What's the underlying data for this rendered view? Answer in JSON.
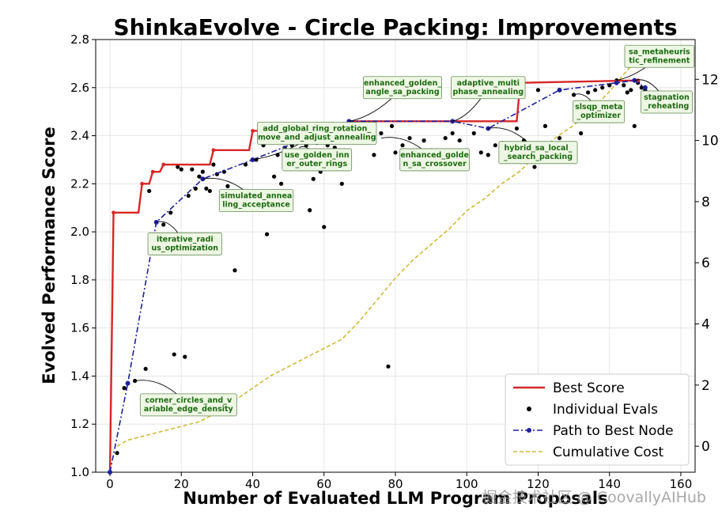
{
  "chart_data": {
    "type": "line",
    "title": "ShinkaEvolve - Circle Packing: Improvements",
    "xlabel": "Number of Evaluated LLM Program Proposals",
    "ylabel": "Evolved Performance Score",
    "xlim": [
      -4,
      164
    ],
    "ylim": [
      1.0,
      2.8
    ],
    "y2lim": [
      -0.85,
      13.3
    ],
    "x_ticks": [
      0,
      20,
      40,
      60,
      80,
      100,
      120,
      140,
      160
    ],
    "y_ticks": [
      1.0,
      1.2,
      1.4,
      1.6,
      1.8,
      2.0,
      2.2,
      2.4,
      2.6,
      2.8
    ],
    "y2_ticks": [
      0,
      2,
      4,
      6,
      8,
      10,
      12
    ],
    "grid": true,
    "legend_position": "lower-right",
    "legend": [
      "Best Score",
      "Individual Evals",
      "Path to Best Node",
      "Cumulative Cost"
    ],
    "colors": {
      "best": "#d62728",
      "evals": "#000000",
      "path": "#1f1f9f",
      "cost": "#cdbb3a",
      "annotation_bg": "#eef7e4",
      "annotation_text": "#1d6b12"
    },
    "series": [
      {
        "name": "Best Score",
        "style": "step",
        "x": [
          0,
          1,
          8,
          9,
          11,
          12,
          14,
          15,
          19,
          20,
          28,
          29,
          39,
          40,
          66,
          67,
          114,
          115,
          148
        ],
        "y": [
          1.0,
          2.08,
          2.08,
          2.2,
          2.2,
          2.25,
          2.25,
          2.28,
          2.28,
          2.28,
          2.28,
          2.34,
          2.34,
          2.42,
          2.42,
          2.46,
          2.46,
          2.62,
          2.63
        ]
      },
      {
        "name": "Individual Evals",
        "style": "scatter",
        "points": [
          [
            2,
            1.08
          ],
          [
            4,
            1.35
          ],
          [
            7,
            1.38
          ],
          [
            10,
            1.43
          ],
          [
            11,
            2.17
          ],
          [
            13,
            2.04
          ],
          [
            15,
            2.03
          ],
          [
            17,
            2.08
          ],
          [
            18,
            1.49
          ],
          [
            19,
            2.27
          ],
          [
            20,
            2.26
          ],
          [
            21,
            1.48
          ],
          [
            22,
            2.15
          ],
          [
            23,
            2.26
          ],
          [
            24,
            2.18
          ],
          [
            25,
            2.23
          ],
          [
            26,
            2.25
          ],
          [
            27,
            2.18
          ],
          [
            28,
            2.17
          ],
          [
            29,
            2.28
          ],
          [
            30,
            2.24
          ],
          [
            32,
            2.25
          ],
          [
            33,
            2.19
          ],
          [
            34,
            2.15
          ],
          [
            35,
            1.84
          ],
          [
            38,
            2.28
          ],
          [
            40,
            2.3
          ],
          [
            41,
            2.3
          ],
          [
            43,
            2.36
          ],
          [
            44,
            1.99
          ],
          [
            45,
            2.38
          ],
          [
            46,
            2.23
          ],
          [
            47,
            2.32
          ],
          [
            48,
            2.2
          ],
          [
            49,
            2.35
          ],
          [
            50,
            2.29
          ],
          [
            51,
            2.36
          ],
          [
            52,
            2.39
          ],
          [
            53,
            2.33
          ],
          [
            54,
            2.3
          ],
          [
            55,
            2.36
          ],
          [
            56,
            2.09
          ],
          [
            57,
            2.22
          ],
          [
            58,
            2.37
          ],
          [
            59,
            2.25
          ],
          [
            60,
            2.02
          ],
          [
            61,
            2.36
          ],
          [
            62,
            2.39
          ],
          [
            63,
            2.35
          ],
          [
            64,
            2.38
          ],
          [
            65,
            2.2
          ],
          [
            66,
            2.44
          ],
          [
            70,
            2.39
          ],
          [
            72,
            2.41
          ],
          [
            74,
            2.32
          ],
          [
            76,
            2.41
          ],
          [
            78,
            1.44
          ],
          [
            79,
            2.44
          ],
          [
            80,
            2.33
          ],
          [
            82,
            2.36
          ],
          [
            84,
            2.39
          ],
          [
            86,
            2.34
          ],
          [
            88,
            2.38
          ],
          [
            90,
            2.34
          ],
          [
            92,
            2.32
          ],
          [
            94,
            2.39
          ],
          [
            96,
            2.41
          ],
          [
            98,
            2.38
          ],
          [
            100,
            2.33
          ],
          [
            102,
            2.41
          ],
          [
            104,
            2.33
          ],
          [
            106,
            2.32
          ],
          [
            108,
            2.36
          ],
          [
            110,
            2.37
          ],
          [
            112,
            2.3
          ],
          [
            114,
            2.43
          ],
          [
            116,
            2.38
          ],
          [
            118,
            2.33
          ],
          [
            119,
            2.27
          ],
          [
            120,
            2.59
          ],
          [
            122,
            2.44
          ],
          [
            124,
            2.32
          ],
          [
            126,
            2.39
          ],
          [
            130,
            2.57
          ],
          [
            132,
            2.41
          ],
          [
            134,
            2.58
          ],
          [
            136,
            2.59
          ],
          [
            138,
            2.6
          ],
          [
            140,
            2.61
          ],
          [
            142,
            2.63
          ],
          [
            144,
            2.61
          ],
          [
            145,
            2.58
          ],
          [
            146,
            2.59
          ],
          [
            147,
            2.44
          ],
          [
            148,
            2.62
          ],
          [
            149,
            2.6
          ],
          [
            150,
            2.59
          ]
        ]
      },
      {
        "name": "Path to Best Node",
        "style": "dashdot",
        "x": [
          0,
          5,
          13,
          26,
          40,
          67,
          96,
          106,
          126,
          142,
          147,
          150
        ],
        "y": [
          1.0,
          1.37,
          2.04,
          2.22,
          2.3,
          2.46,
          2.46,
          2.43,
          2.59,
          2.62,
          2.63,
          2.6
        ]
      },
      {
        "name": "Cumulative Cost",
        "style": "dashed",
        "axis": "right",
        "x": [
          2,
          5,
          10,
          15,
          20,
          25,
          30,
          35,
          40,
          45,
          50,
          55,
          60,
          65,
          70,
          75,
          80,
          85,
          90,
          95,
          100,
          105,
          110,
          115,
          120,
          125,
          130,
          135,
          140,
          145,
          150
        ],
        "y": [
          0.0,
          0.2,
          0.35,
          0.5,
          0.65,
          0.8,
          1.1,
          1.5,
          1.9,
          2.3,
          2.6,
          2.9,
          3.2,
          3.5,
          4.1,
          4.8,
          5.5,
          6.1,
          6.6,
          7.1,
          7.7,
          8.1,
          8.6,
          9.0,
          9.6,
          10.1,
          10.5,
          11.0,
          11.6,
          12.3,
          12.9
        ]
      }
    ],
    "annotations": [
      {
        "label": "corner_circles_and_v ariable_edge_density",
        "text": "corner_circles_and_v\nariable_edge_density",
        "x": 7,
        "y": 1.38,
        "tx": 22,
        "ty": 1.28
      },
      {
        "label": "iterative_radi us_optimization",
        "text": "iterative_radi\nus_optimization",
        "x": 13,
        "y": 2.04,
        "tx": 21,
        "ty": 1.95
      },
      {
        "label": "simulated_annea ling_acceptance",
        "text": "simulated_annea\nling_acceptance",
        "x": 26,
        "y": 2.22,
        "tx": 41,
        "ty": 2.13
      },
      {
        "label": "add_global_ring_rotation_ move_and_adjust_annealing",
        "text": "add_global_ring_rotation_\nmove_and_adjust_annealing",
        "x": 40,
        "y": 2.3,
        "tx": 58,
        "ty": 2.41
      },
      {
        "label": "use_golden_inn er_outer_rings",
        "text": "use_golden_inn\ner_outer_rings",
        "x": 53,
        "y": 2.35,
        "tx": 58,
        "ty": 2.3
      },
      {
        "label": "enhanced_golden_ angle_sa_packing",
        "text": "enhanced_golden_\nangle_sa_packing",
        "x": 67,
        "y": 2.46,
        "tx": 82,
        "ty": 2.6
      },
      {
        "label": "enhanced_golde n_sa_crossover",
        "text": "enhanced_golde\nn_sa_crossover",
        "x": 76,
        "y": 2.39,
        "tx": 91,
        "ty": 2.3
      },
      {
        "label": "adaptive_multi phase_annealing",
        "text": "adaptive_multi\nphase_annealing",
        "x": 96,
        "y": 2.46,
        "tx": 106,
        "ty": 2.6
      },
      {
        "label": "hybrid_sa_local_ _search_packing",
        "text": "hybrid_sa_local_\n_search_packing",
        "x": 106,
        "y": 2.43,
        "tx": 120,
        "ty": 2.33
      },
      {
        "label": "slsqp_meta _optimizer",
        "text": "slsqp_meta\n_optimizer",
        "x": 130,
        "y": 2.57,
        "tx": 137,
        "ty": 2.5
      },
      {
        "label": "sa_metaheuris tic_refinement",
        "text": "sa_metaheuris\ntic_refinement",
        "x": 142,
        "y": 2.63,
        "tx": 154,
        "ty": 2.73
      },
      {
        "label": "stagnation _reheating",
        "text": "stagnation\n_reheating",
        "x": 147,
        "y": 2.63,
        "tx": 156,
        "ty": 2.54
      }
    ]
  },
  "watermark": "掘金技术社区 @ CoovallyAIHub"
}
